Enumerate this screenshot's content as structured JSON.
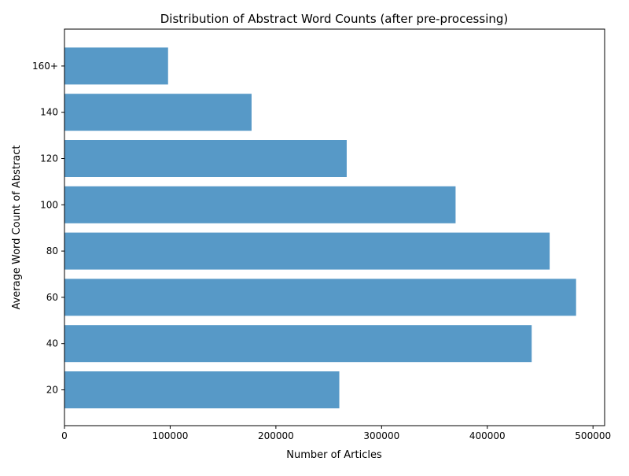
{
  "chart_data": {
    "type": "bar",
    "orientation": "horizontal",
    "title": "Distribution of Abstract Word Counts (after pre-processing)",
    "xlabel": "Number of Articles",
    "ylabel": "Average Word Count of Abstract",
    "categories": [
      "20",
      "40",
      "60",
      "80",
      "100",
      "120",
      "140",
      "160+"
    ],
    "values": [
      260000,
      442000,
      484000,
      459000,
      370000,
      267000,
      177000,
      98000
    ],
    "xlim": [
      0,
      511000
    ],
    "xticks": [
      0,
      100000,
      200000,
      300000,
      400000,
      500000
    ],
    "xtick_labels": [
      "0",
      "100000",
      "200000",
      "300000",
      "400000",
      "500000"
    ],
    "bar_color": "#5799c7",
    "grid": false,
    "legend": "none"
  }
}
